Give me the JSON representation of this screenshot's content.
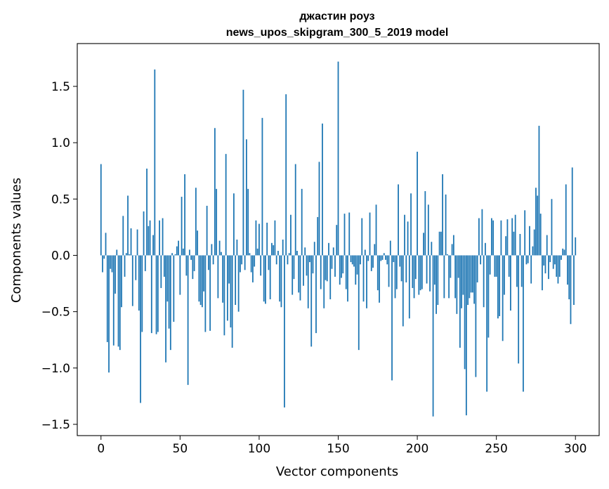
{
  "chart_data": {
    "type": "bar",
    "title": "джастин роуз",
    "subtitle": "news_upos_skipgram_300_5_2019 model",
    "xlabel": "Vector components",
    "ylabel": "Components values",
    "xlim": [
      -15,
      315
    ],
    "ylim": [
      -1.6,
      1.88
    ],
    "xticks": [
      0,
      50,
      100,
      150,
      200,
      250,
      300
    ],
    "yticks": [
      -1.5,
      -1.0,
      -0.5,
      0.0,
      0.5,
      1.0,
      1.5
    ],
    "ytick_labels": [
      "−1.5",
      "−1.0",
      "−0.5",
      "0.0",
      "0.5",
      "1.0",
      "1.5"
    ],
    "xtick_labels": [
      "0",
      "50",
      "100",
      "150",
      "200",
      "250",
      "300"
    ],
    "grid": false,
    "legend": "none",
    "bar_color": "#1f77b4",
    "x_start": 0,
    "values": [
      0.81,
      -0.15,
      -0.03,
      0.2,
      -0.77,
      -1.04,
      -0.12,
      -0.15,
      -0.8,
      -0.34,
      0.05,
      -0.81,
      -0.84,
      -0.46,
      0.35,
      -0.19,
      0.02,
      0.53,
      0.01,
      0.24,
      -0.45,
      0.0,
      -0.22,
      0.23,
      -0.49,
      -1.31,
      -0.68,
      0.39,
      -0.14,
      0.77,
      0.26,
      0.31,
      -0.69,
      0.18,
      1.65,
      -0.7,
      -0.68,
      0.31,
      -0.29,
      0.33,
      -0.19,
      -0.95,
      -0.41,
      -0.65,
      -0.84,
      0.02,
      -0.59,
      0.01,
      0.08,
      0.13,
      -0.35,
      0.52,
      0.06,
      0.72,
      -0.18,
      -1.15,
      0.05,
      -0.04,
      -0.21,
      -0.14,
      0.6,
      0.22,
      -0.41,
      -0.44,
      -0.46,
      -0.32,
      -0.68,
      0.44,
      -0.13,
      -0.67,
      0.1,
      -0.08,
      1.13,
      0.59,
      -0.38,
      0.13,
      0.03,
      -0.42,
      -0.71,
      0.9,
      -0.58,
      -0.25,
      -0.64,
      -0.82,
      0.55,
      -0.44,
      0.14,
      -0.5,
      -0.15,
      -0.08,
      1.47,
      -0.13,
      1.03,
      0.59,
      0.02,
      -0.15,
      -0.24,
      -0.1,
      0.31,
      0.06,
      0.28,
      -0.18,
      1.22,
      -0.41,
      -0.43,
      0.29,
      -0.13,
      -0.39,
      0.11,
      0.09,
      0.31,
      -0.08,
      0.04,
      -0.41,
      -0.46,
      0.14,
      -1.35,
      1.43,
      -0.08,
      0.02,
      0.36,
      -0.35,
      -0.21,
      0.81,
      0.04,
      -0.33,
      -0.4,
      0.59,
      -0.27,
      0.07,
      -0.18,
      -0.47,
      -0.06,
      -0.81,
      -0.16,
      0.12,
      -0.69,
      0.34,
      0.83,
      -0.3,
      1.17,
      -0.47,
      -0.22,
      -0.23,
      0.11,
      -0.39,
      -0.12,
      0.07,
      -0.19,
      0.27,
      1.72,
      -0.26,
      -0.2,
      -0.16,
      0.37,
      -0.3,
      -0.41,
      0.38,
      -0.06,
      -0.08,
      -0.1,
      -0.26,
      -0.17,
      -0.84,
      -0.08,
      0.33,
      -0.41,
      0.05,
      -0.47,
      -0.05,
      0.38,
      -0.14,
      -0.11,
      0.1,
      0.45,
      -0.31,
      -0.42,
      -0.05,
      -0.04,
      0.02,
      -0.04,
      -0.08,
      -0.28,
      0.13,
      -1.11,
      -0.06,
      -0.38,
      -0.3,
      0.63,
      -0.1,
      -0.23,
      -0.63,
      0.36,
      -0.24,
      0.3,
      -0.56,
      0.55,
      -0.29,
      -0.38,
      -0.21,
      0.92,
      -0.35,
      -0.31,
      -0.3,
      0.2,
      0.57,
      -0.25,
      0.45,
      -0.32,
      0.12,
      -1.43,
      -0.26,
      -0.52,
      -0.44,
      0.21,
      0.21,
      0.72,
      -0.38,
      0.54,
      0.01,
      -0.38,
      -0.2,
      0.1,
      0.18,
      -0.38,
      -0.52,
      -0.2,
      -0.82,
      -0.47,
      -0.35,
      -1.01,
      -1.42,
      -0.44,
      -0.38,
      -0.33,
      -0.33,
      -0.43,
      -1.08,
      -0.24,
      0.33,
      -0.08,
      0.41,
      -0.46,
      0.11,
      -1.21,
      -0.73,
      -0.17,
      0.33,
      0.31,
      -0.19,
      -0.19,
      -0.56,
      -0.54,
      0.31,
      -0.76,
      -0.35,
      0.17,
      0.32,
      -0.19,
      -0.49,
      0.33,
      0.21,
      0.36,
      -0.28,
      -0.96,
      0.19,
      -0.28,
      -1.21,
      0.4,
      -0.08,
      -0.07,
      0.26,
      -0.25,
      0.08,
      0.23,
      0.6,
      0.53,
      1.15,
      0.37,
      -0.31,
      -0.09,
      -0.16,
      0.18,
      -0.21,
      -0.06,
      0.5,
      -0.12,
      -0.08,
      -0.19,
      -0.25,
      -0.19,
      -0.04,
      0.06,
      0.05,
      0.63,
      -0.26,
      -0.39,
      -0.61,
      0.78,
      -0.44,
      0.16
    ]
  }
}
